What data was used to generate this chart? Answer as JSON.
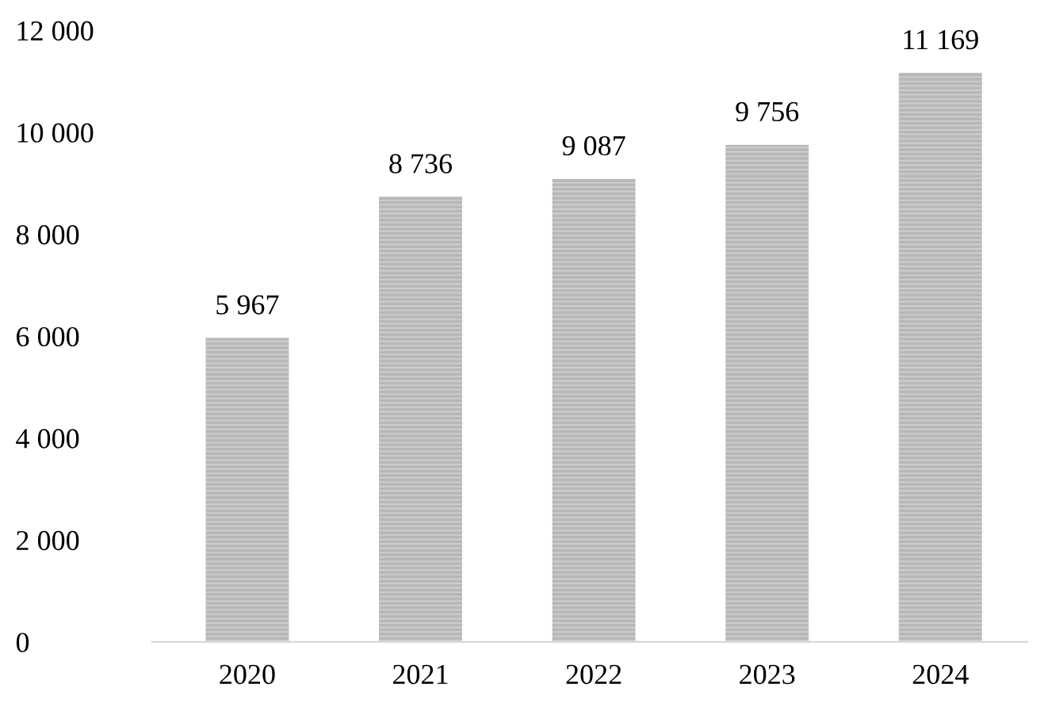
{
  "chart_data": {
    "type": "bar",
    "categories": [
      "2020",
      "2021",
      "2022",
      "2023",
      "2024"
    ],
    "values": [
      5967,
      8736,
      9087,
      9756,
      11169
    ],
    "value_labels": [
      "5 967",
      "8 736",
      "9 087",
      "9 756",
      "11 169"
    ],
    "color": "#b8b8b8",
    "ylim": [
      0,
      12000
    ],
    "yticks": [
      0,
      {
        "value": 2000,
        "label": "2 000"
      },
      {
        "value": 4000,
        "label": "4 000"
      },
      {
        "value": 6000,
        "label": "6 000"
      },
      {
        "value": 8000,
        "label": "8 000"
      },
      {
        "value": 10000,
        "label": "10 000"
      },
      {
        "value": 12000,
        "label": "12 000"
      }
    ],
    "grid": false,
    "legend": false
  }
}
